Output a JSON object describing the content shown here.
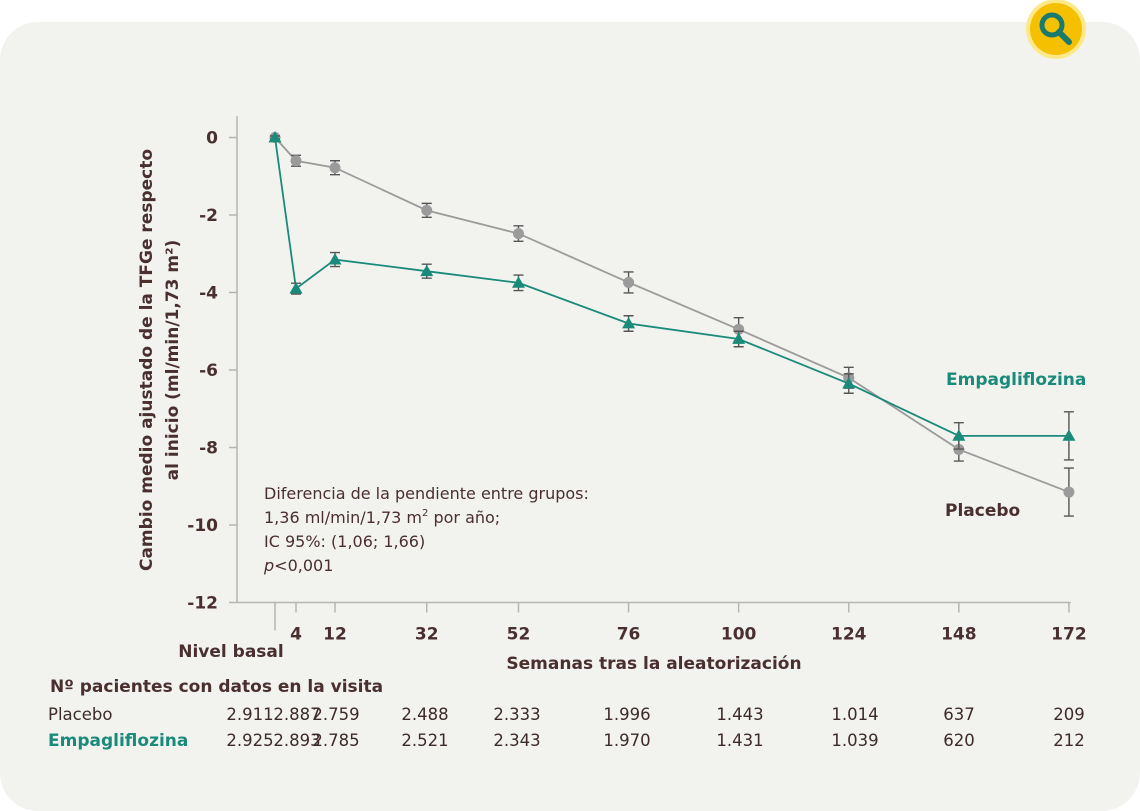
{
  "chart_data": {
    "type": "line",
    "xlabel": "Semanas tras la aleatorización",
    "ylabel_line1": "Cambio medio ajustado de la TFGe respecto",
    "ylabel_line2": "al inicio (ml/min/1,73 m²)",
    "x_ticks": [
      {
        "label": "4",
        "value": 4
      },
      {
        "label": "12",
        "value": 12
      },
      {
        "label": "32",
        "value": 32
      },
      {
        "label": "52",
        "value": 52
      },
      {
        "label": "76",
        "value": 76
      },
      {
        "label": "100",
        "value": 100
      },
      {
        "label": "124",
        "value": 124
      },
      {
        "label": "148",
        "value": 148
      },
      {
        "label": "172",
        "value": 172
      }
    ],
    "baseline_label": "Nivel basal",
    "y_ticks": [
      0,
      -2,
      -4,
      -6,
      -8,
      -10,
      -12
    ],
    "ylim": [
      -12,
      0.5
    ],
    "series": [
      {
        "name": "Placebo",
        "color": "#9b9b9b",
        "marker": "circle",
        "x": [
          0,
          4,
          12,
          32,
          52,
          76,
          100,
          124,
          148,
          172
        ],
        "y": [
          0,
          -0.6,
          -0.78,
          -1.88,
          -2.48,
          -3.74,
          -4.95,
          -6.2,
          -8.05,
          -9.15
        ],
        "err": [
          0.04,
          0.14,
          0.18,
          0.18,
          0.2,
          0.27,
          0.3,
          0.27,
          0.3,
          0.62
        ]
      },
      {
        "name": "Empagliflozina",
        "color": "#1a8a7a",
        "marker": "triangle",
        "x": [
          0,
          4,
          12,
          32,
          52,
          76,
          100,
          124,
          148,
          172
        ],
        "y": [
          0,
          -3.9,
          -3.15,
          -3.45,
          -3.75,
          -4.8,
          -5.2,
          -6.35,
          -7.7,
          -7.7
        ],
        "err": [
          0.04,
          0.14,
          0.18,
          0.18,
          0.2,
          0.2,
          0.2,
          0.25,
          0.34,
          0.62
        ]
      }
    ],
    "annotation": {
      "line1": "Diferencia de la pendiente entre grupos:",
      "line2_a": "1,36 ml/min/1,73 m",
      "line2_sup": "2",
      "line2_b": " por año;",
      "line3": "IC 95%: (1,06; 1,66)",
      "line4_p": "p",
      "line4_rest": "<0,001"
    },
    "table": {
      "title": "Nº pacientes con datos en la visita",
      "rows": [
        {
          "label": "Placebo",
          "values": [
            "2.911",
            "2.887",
            "2.759",
            "2.488",
            "2.333",
            "1.996",
            "1.443",
            "1.014",
            "637",
            "209"
          ]
        },
        {
          "label": "Empagliflozina",
          "values": [
            "2.925",
            "2.893",
            "2.785",
            "2.521",
            "2.343",
            "1.970",
            "1.431",
            "1.039",
            "620",
            "212"
          ]
        }
      ]
    }
  },
  "search_icon": "magnifier-icon"
}
